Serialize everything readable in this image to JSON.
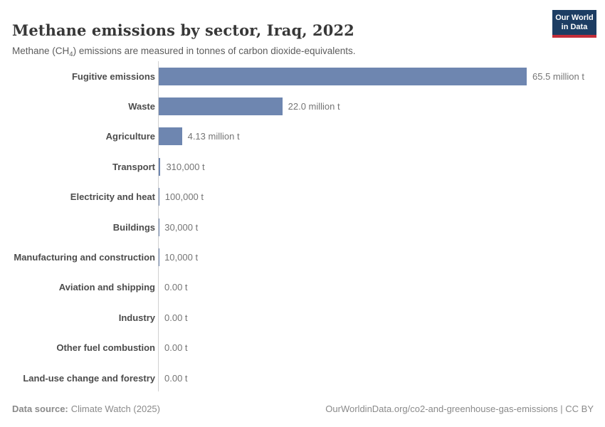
{
  "header": {
    "title": "Methane emissions by sector, Iraq, 2022",
    "subtitle_prefix": "Methane (CH",
    "subtitle_sub": "4",
    "subtitle_suffix": ") emissions are measured in tonnes of carbon dioxide-equivalents.",
    "logo": {
      "line1": "Our World",
      "line2": "in Data"
    }
  },
  "chart_data": {
    "type": "bar",
    "orientation": "horizontal",
    "title": "Methane emissions by sector, Iraq, 2022",
    "categories": [
      "Fugitive emissions",
      "Waste",
      "Agriculture",
      "Transport",
      "Electricity and heat",
      "Buildings",
      "Manufacturing and construction",
      "Aviation and shipping",
      "Industry",
      "Other fuel combustion",
      "Land-use change and forestry"
    ],
    "values": [
      65500000,
      22000000,
      4130000,
      310000,
      100000,
      30000,
      10000,
      0,
      0,
      0,
      0
    ],
    "value_labels": [
      "65.5 million t",
      "22.0 million t",
      "4.13 million t",
      "310,000 t",
      "100,000 t",
      "30,000 t",
      "10,000 t",
      "0.00 t",
      "0.00 t",
      "0.00 t",
      "0.00 t"
    ],
    "value_unit": "t",
    "xlim": [
      0,
      65500000
    ],
    "grid": false,
    "legend": "none",
    "bar_color": "#6e86b0",
    "axis_color": "#d0d0d0"
  },
  "footer": {
    "source_label": "Data source:",
    "source_value": "Climate Watch (2025)",
    "link_text": "OurWorldinData.org/co2-and-greenhouse-gas-emissions | CC BY"
  },
  "colors": {
    "logo_navy": "#1d3d63",
    "logo_red": "#c32d39",
    "title_text": "#383838",
    "category_text": "#4c4c4c",
    "value_text": "#757575"
  }
}
